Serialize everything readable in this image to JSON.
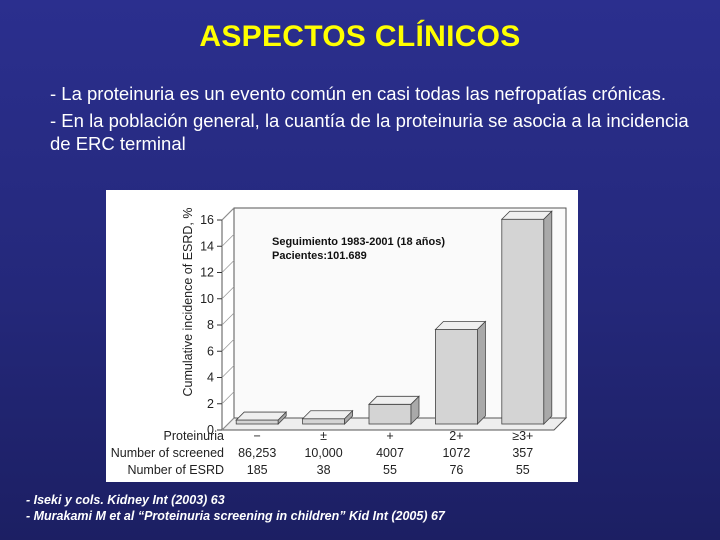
{
  "slide": {
    "title": "ASPECTOS CLÍNICOS",
    "bullets": [
      "- La proteinuria es un evento común en casi todas las nefropatías crónicas.",
      "- En la población general, la cuantía de la proteinuria se asocia a la  incidencia de ERC terminal"
    ],
    "references": [
      "- Iseki y cols. Kidney Int (2003) 63",
      "- Murakami M et al “Proteinuria screening in children” Kid Int (2005) 67"
    ],
    "colors": {
      "background": "#262a80",
      "title": "#ffff00",
      "text": "#ffffff"
    }
  },
  "chart_data": {
    "type": "bar",
    "title": "",
    "annotation": [
      "Seguimiento 1983-2001 (18 años)",
      "Pacientes:101.689"
    ],
    "ylabel": "Cumulative incidence of ESRD, %",
    "xlabel": "",
    "ylim": [
      0,
      16
    ],
    "yticks": [
      0,
      2,
      4,
      6,
      8,
      10,
      12,
      14,
      16
    ],
    "categories": [
      "−",
      "±",
      "+",
      "2+",
      "≥3+"
    ],
    "values": [
      0.3,
      0.4,
      1.5,
      7.2,
      15.6
    ],
    "grid": false,
    "bar_color": "#d4d4d4",
    "table": {
      "rows": [
        {
          "label": "Proteinuria",
          "values": [
            "−",
            "±",
            "+",
            "2+",
            "≥3+"
          ]
        },
        {
          "label": "Number of screened",
          "values": [
            "86,253",
            "10,000",
            "4007",
            "1072",
            "357"
          ]
        },
        {
          "label": "Number of ESRD",
          "values": [
            "185",
            "38",
            "55",
            "76",
            "55"
          ]
        }
      ]
    }
  }
}
